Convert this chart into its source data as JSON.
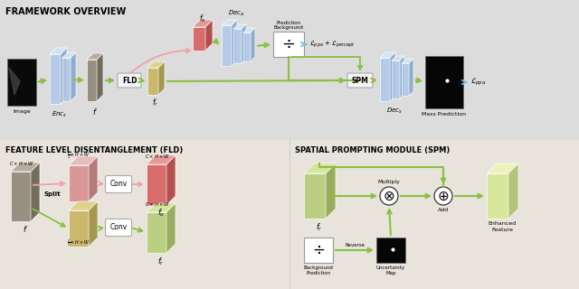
{
  "bg_top": "#dcdcdc",
  "bg_bot": "#e8e4dc",
  "title_fw": "FRAMEWORK OVERVIEW",
  "title_fld": "FEATURE LEVEL DISENTANGLEMENT (FLD)",
  "title_spm": "SPATIAL PROMPTING MODULE (SPM)",
  "green": "#88c040",
  "pink": "#f0a0a8",
  "blue_arrow": "#80b8e0",
  "blue_block": "#b0c8e8",
  "blue_block_side": "#88a8cc",
  "blue_block_top": "#d0e4f4",
  "gray_block": "#908878",
  "gray_side": "#686050",
  "gray_top": "#b0a898",
  "red_block": "#d86060",
  "red_side": "#b04040",
  "red_top": "#e89090",
  "yellow_block": "#c8b460",
  "yellow_side": "#a09040",
  "yellow_top": "#e0d080",
  "pink_block": "#d89090",
  "pink_side": "#b07070",
  "pink_top": "#e8b8b8",
  "green_block": "#b8cc78",
  "green_side": "#90a850",
  "green_top": "#d4e498",
  "enhanced_block": "#d8e898",
  "enhanced_side": "#b0c070",
  "enhanced_top": "#ecf4b8",
  "white": "#ffffff",
  "black": "#080808",
  "text_black": "#111111"
}
